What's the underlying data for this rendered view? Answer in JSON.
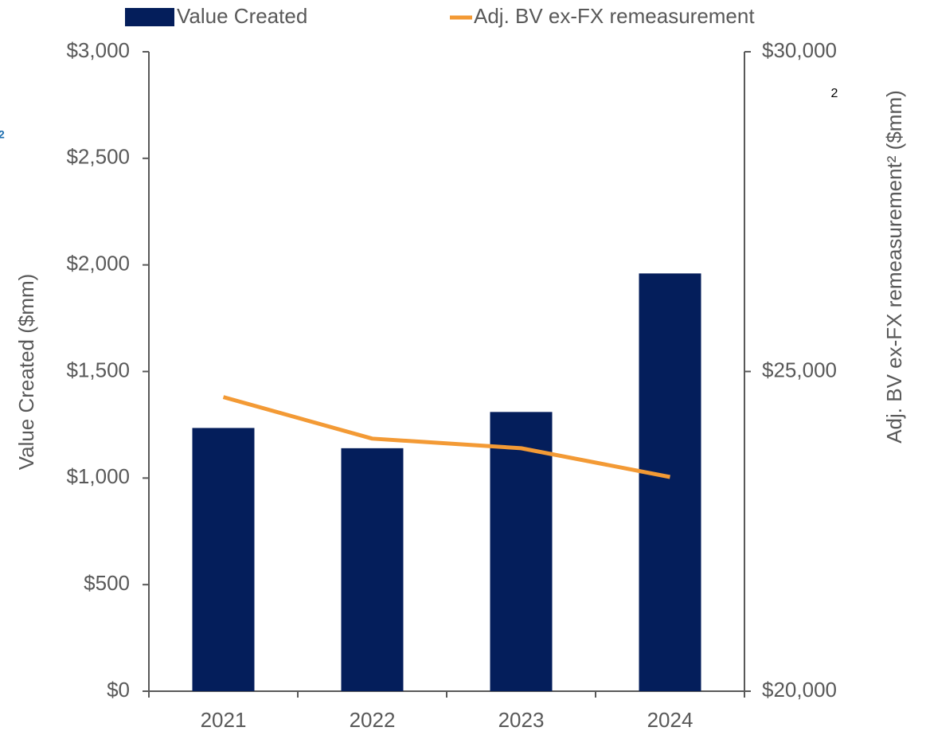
{
  "chart_data": {
    "type": "bar",
    "categories": [
      "2021",
      "2022",
      "2023",
      "2024"
    ],
    "series": [
      {
        "name": "Value Created",
        "type": "bar",
        "color": "#041e5b",
        "values": [
          1235,
          1140,
          1310,
          1960
        ]
      },
      {
        "name": "Adj. BV ex-FX remeasurement",
        "type": "line",
        "axis": "y2",
        "color": "#f39a35",
        "values": [
          24600,
          23950,
          23800,
          23350
        ]
      }
    ],
    "ylabel": "Value Created ($mm)",
    "y2label": "Adj. BV ex-FX remeasurement² ($mm)",
    "ylim": [
      0,
      3000
    ],
    "yticks": [
      {
        "value": 0,
        "label": "$0"
      },
      {
        "value": 500,
        "label": "$500"
      },
      {
        "value": 1000,
        "label": "$1,000"
      },
      {
        "value": 1500,
        "label": "$1,500"
      },
      {
        "value": 2000,
        "label": "$2,000"
      },
      {
        "value": 2500,
        "label": "$2,500"
      },
      {
        "value": 3000,
        "label": "$3,000"
      }
    ],
    "y2lim": [
      20000,
      30000
    ],
    "y2ticks": [
      {
        "value": 20000,
        "label": "$20,000"
      },
      {
        "value": 25000,
        "label": "$25,000"
      },
      {
        "value": 30000,
        "label": "$30,000"
      }
    ],
    "annotations": [
      "2",
      "2"
    ],
    "grid": false,
    "legend": "top"
  }
}
